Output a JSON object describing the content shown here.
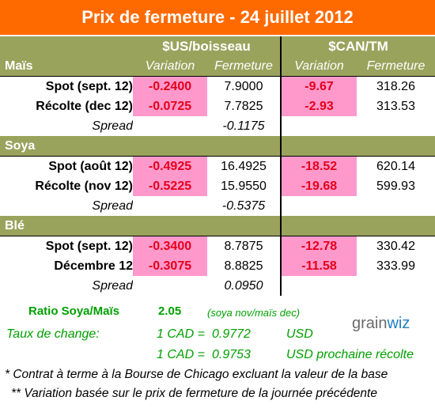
{
  "title": "Prix de fermeture - 24 juillet 2012",
  "colors": {
    "title_bg": "#ff6a00",
    "header_bg": "#9aa35c",
    "variation_bg": "#ff99cc",
    "variation_text": "#e6001a",
    "green_text": "#00a000"
  },
  "table": {
    "group_us": "$US/boisseau",
    "group_can": "$CAN/TM",
    "col_variation": "Variation",
    "col_fermeture": "Fermeture",
    "sections": [
      {
        "name": "Maïs",
        "rows": [
          {
            "label": "Spot (sept. 12)",
            "us_var": "-0.2400",
            "us_close": "7.9000",
            "can_var": "-9.67",
            "can_close": "318.26"
          },
          {
            "label": "Récolte (dec 12)",
            "us_var": "-0.0725",
            "us_close": "7.7825",
            "can_var": "-2.93",
            "can_close": "313.53"
          }
        ],
        "spread_label": "Spread",
        "spread_value": "-0.1175"
      },
      {
        "name": "Soya",
        "rows": [
          {
            "label": "Spot (août 12)",
            "us_var": "-0.4925",
            "us_close": "16.4925",
            "can_var": "-18.52",
            "can_close": "620.14"
          },
          {
            "label": "Récolte (nov 12)",
            "us_var": "-0.5225",
            "us_close": "15.9550",
            "can_var": "-19.68",
            "can_close": "599.93"
          }
        ],
        "spread_label": "Spread",
        "spread_value": "-0.5375"
      },
      {
        "name": "Blé",
        "rows": [
          {
            "label": "Spot (sept. 12)",
            "us_var": "-0.3400",
            "us_close": "8.7875",
            "can_var": "-12.78",
            "can_close": "330.42"
          },
          {
            "label": "Décembre 12",
            "us_var": "-0.3075",
            "us_close": "8.8825",
            "can_var": "-11.58",
            "can_close": "333.99"
          }
        ],
        "spread_label": "Spread",
        "spread_value": "0.0950"
      }
    ]
  },
  "ratio": {
    "label": "Ratio Soya/Maïs",
    "value": "2.05",
    "note": "(soya nov/maïs dec)"
  },
  "exchange": {
    "label": "Taux de change:",
    "rows": [
      {
        "lhs": "1 CAD =",
        "value": "0.9772",
        "unit": "USD"
      },
      {
        "lhs": "1 CAD =",
        "value": "0.9753",
        "unit": "USD prochaine récolte"
      }
    ]
  },
  "logo": {
    "text_main": "grain",
    "text_accent": "wiz"
  },
  "notes": [
    "* Contrat à terme à la Bourse de Chicago excluant la valeur de la base",
    "** Variation basée sur le prix de fermeture de la journée précédente"
  ]
}
